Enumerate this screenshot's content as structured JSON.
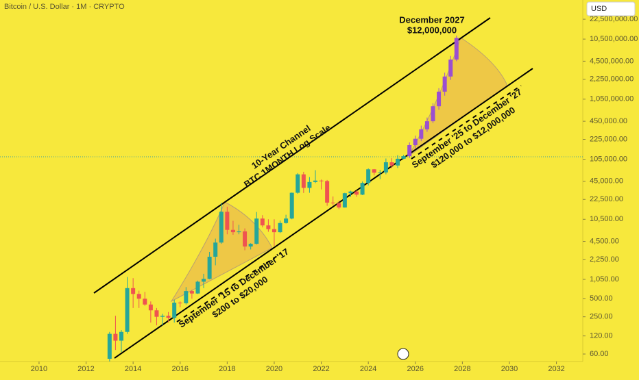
{
  "chart_data": {
    "type": "candlestick",
    "title": "Bitcoin / U.S. Dollar · 1M · CRYPTO",
    "currency": "USD",
    "log_scale": true,
    "up_color": "#26a69a",
    "down_color": "#ef5350",
    "xlim": [
      2008.34,
      2033.12
    ],
    "xticks": [
      2010,
      2012,
      2014,
      2016,
      2018,
      2020,
      2022,
      2024,
      2026,
      2028,
      2030,
      2032
    ],
    "ylim": [
      45,
      47000000
    ],
    "yticks": [
      {
        "value": 60,
        "label": "60.00"
      },
      {
        "value": 120,
        "label": "120.00"
      },
      {
        "value": 250,
        "label": "250.00"
      },
      {
        "value": 500,
        "label": "500.00"
      },
      {
        "value": 1050,
        "label": "1,050.00"
      },
      {
        "value": 2250,
        "label": "2,250.00"
      },
      {
        "value": 4500,
        "label": "4,500.00"
      },
      {
        "value": 10500,
        "label": "10,500.00"
      },
      {
        "value": 22500,
        "label": "22,500.00"
      },
      {
        "value": 45000,
        "label": "45,000.00"
      },
      {
        "value": 105000,
        "label": "105,000.00"
      },
      {
        "value": 225000,
        "label": "225,000.00"
      },
      {
        "value": 450000,
        "label": "450,000.00"
      },
      {
        "value": 1050000,
        "label": "1,050,000.00"
      },
      {
        "value": 2250000,
        "label": "2,250,000.00"
      },
      {
        "value": 4500000,
        "label": "4,500,000.00"
      },
      {
        "value": 10500000,
        "label": "10,500,000.00"
      },
      {
        "value": 22500000,
        "label": "22,500,000.00"
      }
    ],
    "x": [
      2013.0,
      2013.25,
      2013.5,
      2013.75,
      2014.0,
      2014.25,
      2014.5,
      2014.75,
      2015.0,
      2015.25,
      2015.5,
      2015.75,
      2016.0,
      2016.25,
      2016.5,
      2016.75,
      2017.0,
      2017.25,
      2017.5,
      2017.75,
      2018.0,
      2018.25,
      2018.5,
      2018.75,
      2019.0,
      2019.25,
      2019.5,
      2019.75,
      2020.0,
      2020.25,
      2020.5,
      2020.75,
      2021.0,
      2021.25,
      2021.5,
      2021.75,
      2022.0,
      2022.25,
      2022.5,
      2022.75,
      2023.0,
      2023.25,
      2023.5,
      2023.75,
      2024.0,
      2024.25,
      2024.5,
      2024.75,
      2025.0,
      2025.25,
      2025.5
    ],
    "open": [
      50,
      130,
      100,
      140,
      750,
      600,
      500,
      400,
      320,
      250,
      260,
      240,
      430,
      420,
      670,
      610,
      960,
      1070,
      2500,
      4300,
      14000,
      7000,
      6400,
      6600,
      3700,
      4100,
      10800,
      8300,
      7200,
      6400,
      9100,
      10800,
      29000,
      58800,
      35000,
      43800,
      46300,
      45500,
      19900,
      19400,
      16500,
      28500,
      30500,
      27000,
      42300,
      71300,
      62700,
      63300,
      93400,
      82500,
      107000
    ],
    "high": [
      140,
      260,
      150,
      1150,
      1100,
      680,
      650,
      450,
      350,
      280,
      300,
      480,
      450,
      780,
      700,
      1000,
      1300,
      3000,
      5000,
      19700,
      17000,
      9900,
      8500,
      7400,
      4200,
      13900,
      12300,
      10500,
      10500,
      10000,
      12500,
      29300,
      61700,
      64800,
      52900,
      69000,
      48200,
      47400,
      25200,
      21500,
      29000,
      31400,
      31800,
      44700,
      73800,
      72000,
      70000,
      108000,
      109000,
      123000,
      124000
    ],
    "low": [
      45,
      70,
      65,
      130,
      350,
      350,
      380,
      200,
      180,
      180,
      200,
      200,
      360,
      400,
      500,
      600,
      750,
      1050,
      1800,
      4100,
      5900,
      5800,
      5900,
      3200,
      3300,
      4000,
      7700,
      6500,
      3800,
      6200,
      8900,
      10500,
      28000,
      28800,
      29000,
      42000,
      33000,
      17600,
      18100,
      15500,
      16400,
      24800,
      24900,
      26500,
      38500,
      56500,
      49000,
      58900,
      74400,
      75000,
      105000
    ],
    "close": [
      130,
      100,
      140,
      750,
      600,
      500,
      400,
      320,
      250,
      260,
      240,
      430,
      420,
      670,
      610,
      960,
      1070,
      2500,
      4300,
      14000,
      7000,
      6400,
      6600,
      3700,
      4100,
      10800,
      8300,
      7200,
      6400,
      9100,
      10800,
      29000,
      58800,
      35000,
      43800,
      46300,
      45500,
      19900,
      19400,
      16500,
      28500,
      30500,
      27000,
      42300,
      71300,
      62700,
      63300,
      93400,
      82500,
      107000,
      118000
    ],
    "forecast": {
      "color": "#9b4fd0",
      "x": [
        2025.75,
        2026.0,
        2026.25,
        2026.5,
        2026.75,
        2027.0,
        2027.25,
        2027.5,
        2027.75
      ],
      "open": [
        118000,
        180000,
        230000,
        330000,
        450000,
        800000,
        1400000,
        2500000,
        4800000
      ],
      "high": [
        200000,
        260000,
        380000,
        520000,
        900000,
        1600000,
        2900000,
        5500000,
        12000000
      ],
      "low": [
        110000,
        160000,
        210000,
        300000,
        420000,
        700000,
        1200000,
        2200000,
        4500000
      ],
      "close": [
        180000,
        230000,
        330000,
        450000,
        800000,
        1400000,
        2500000,
        4800000,
        11000000
      ]
    },
    "annotations": {
      "channel": [
        "10-Year Channel",
        "BTC 1MONTH Log Scale"
      ],
      "target": [
        "December 2027",
        "$12,000,000"
      ],
      "cycle_2017": [
        "September '15 to December '17",
        "$200 to $20,000"
      ],
      "cycle_2027": [
        "September '25 to December '27",
        "$120,000 to $12,000,000"
      ]
    }
  }
}
